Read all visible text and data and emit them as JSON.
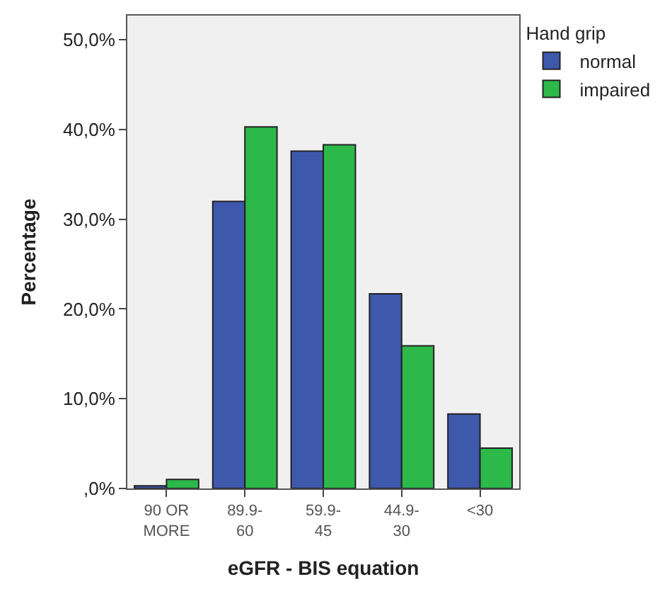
{
  "chart_data": {
    "type": "bar",
    "xlabel": "eGFR - BIS equation",
    "ylabel": "Percentage",
    "legend_title": "Hand grip",
    "categories": [
      "90 OR MORE",
      "89.9-60",
      "59.9-45",
      "44.9-30",
      "<30"
    ],
    "series": [
      {
        "name": "normal",
        "color": "#3e58ac",
        "values": [
          0.3,
          32.0,
          37.6,
          21.7,
          8.3
        ]
      },
      {
        "name": "impaired",
        "color": "#2db84a",
        "values": [
          1.0,
          40.3,
          38.3,
          15.9,
          4.5
        ]
      }
    ],
    "ylim": [
      0,
      52.7
    ],
    "yticks": [
      {
        "value": 0,
        "label": ",0%"
      },
      {
        "value": 10,
        "label": "10,0%"
      },
      {
        "value": 20,
        "label": "20,0%"
      },
      {
        "value": 30,
        "label": "30,0%"
      },
      {
        "value": 40,
        "label": "40,0%"
      },
      {
        "value": 50,
        "label": "50,0%"
      }
    ],
    "grid": false,
    "legend": "top right"
  }
}
